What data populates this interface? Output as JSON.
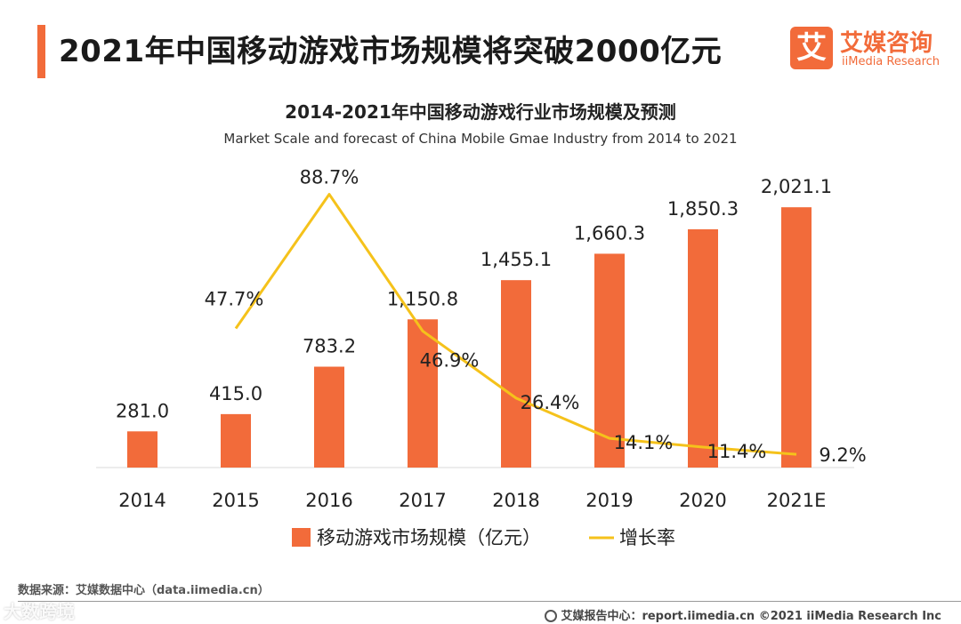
{
  "header": {
    "title": "2021年中国移动游戏市场规模将突破2000亿元"
  },
  "logo": {
    "mark": "艾",
    "name_cn": "艾媒咨询",
    "name_en": "iiMedia Research"
  },
  "colors": {
    "accent": "#f26b3a",
    "bar": "#f26b3a",
    "line": "#f5c21b"
  },
  "chart_data": {
    "type": "bar",
    "title": "2014-2021年中国移动游戏行业市场规模及预测",
    "subtitle": "Market Scale and forecast of China Mobile Gmae Industry from 2014 to 2021",
    "categories": [
      "2014",
      "2015",
      "2016",
      "2017",
      "2018",
      "2019",
      "2020",
      "2021E"
    ],
    "series": [
      {
        "name": "移动游戏市场规模（亿元）",
        "type": "bar",
        "values": [
          281.0,
          415.0,
          783.2,
          1150.8,
          1455.1,
          1660.3,
          1850.3,
          2021.1
        ],
        "labels": [
          "281.0",
          "415.0",
          "783.2",
          "1,150.8",
          "1,455.1",
          "1,660.3",
          "1,850.3",
          "2,021.1"
        ]
      },
      {
        "name": "增长率",
        "type": "line",
        "values": [
          null,
          47.7,
          88.7,
          46.9,
          26.4,
          14.1,
          11.4,
          9.2
        ],
        "labels": [
          "",
          "47.7%",
          "88.7%",
          "46.9%",
          "26.4%",
          "14.1%",
          "11.4%",
          "9.2%"
        ]
      }
    ],
    "bar_ylim": [
      0,
      2250
    ],
    "line_ylim": [
      0,
      100
    ],
    "legend_position": "bottom",
    "grid": false
  },
  "footer": {
    "source": "数据来源：艾媒数据中心（data.iimedia.cn）",
    "credit": "艾媒报告中心：report.iimedia.cn ©2021  iiMedia Research  Inc",
    "watermark": "大数跨境"
  }
}
